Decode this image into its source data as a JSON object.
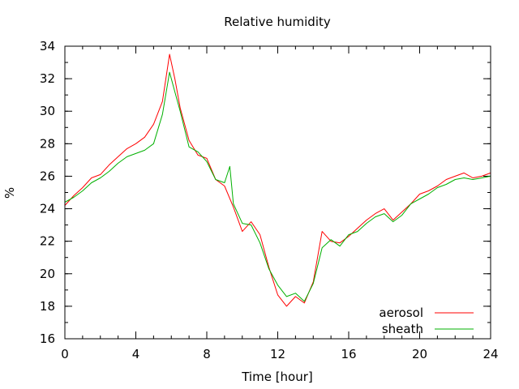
{
  "chart_data": {
    "type": "line",
    "title": "Relative humidity",
    "xlabel": "Time [hour]",
    "ylabel": "%",
    "xlim": [
      0,
      24
    ],
    "ylim": [
      16,
      34
    ],
    "xticks": [
      "0",
      "4",
      "8",
      "12",
      "16",
      "20",
      "24"
    ],
    "yticks": [
      "16",
      "18",
      "20",
      "22",
      "24",
      "26",
      "28",
      "30",
      "32",
      "34"
    ],
    "grid": false,
    "legend_position": "bottom-right",
    "series": [
      {
        "name": "aerosol",
        "color": "#ff0000",
        "x": [
          0,
          0.5,
          1,
          1.5,
          2,
          2.5,
          3,
          3.5,
          4,
          4.5,
          5,
          5.5,
          5.9,
          6.2,
          6.5,
          7,
          7.5,
          8,
          8.5,
          9,
          9.5,
          10,
          10.5,
          11,
          11.5,
          12,
          12.5,
          13,
          13.5,
          14,
          14.5,
          15,
          15.5,
          16,
          16.5,
          17,
          17.5,
          18,
          18.5,
          19,
          19.5,
          20,
          20.5,
          21,
          21.5,
          22,
          22.5,
          23,
          23.5,
          24
        ],
        "y": [
          24.2,
          24.8,
          25.3,
          25.9,
          26.1,
          26.7,
          27.2,
          27.7,
          28.0,
          28.4,
          29.2,
          30.6,
          33.5,
          32.0,
          30.2,
          28.2,
          27.3,
          27.1,
          25.8,
          25.4,
          24.1,
          22.6,
          23.2,
          22.4,
          20.4,
          18.7,
          18.0,
          18.6,
          18.2,
          19.5,
          22.6,
          22.0,
          21.9,
          22.3,
          22.8,
          23.3,
          23.7,
          24.0,
          23.3,
          23.8,
          24.3,
          24.9,
          25.1,
          25.4,
          25.8,
          26.0,
          26.2,
          25.9,
          26.0,
          26.2
        ]
      },
      {
        "name": "sheath",
        "color": "#00b000",
        "x": [
          0,
          0.5,
          1,
          1.5,
          2,
          2.5,
          3,
          3.5,
          4,
          4.5,
          5,
          5.5,
          5.9,
          6.2,
          6.5,
          7,
          7.5,
          8,
          8.5,
          9,
          9.3,
          9.5,
          10,
          10.5,
          11,
          11.5,
          12,
          12.5,
          13,
          13.5,
          14,
          14.5,
          15,
          15.5,
          16,
          16.5,
          17,
          17.5,
          18,
          18.5,
          19,
          19.5,
          20,
          20.5,
          21,
          21.5,
          22,
          22.5,
          23,
          23.5,
          24
        ],
        "y": [
          24.4,
          24.7,
          25.1,
          25.6,
          25.9,
          26.3,
          26.8,
          27.2,
          27.4,
          27.6,
          28.0,
          29.8,
          32.4,
          31.2,
          30.0,
          27.8,
          27.5,
          26.9,
          25.8,
          25.6,
          26.6,
          24.3,
          23.1,
          23.0,
          21.9,
          20.3,
          19.3,
          18.6,
          18.8,
          18.3,
          19.4,
          21.6,
          22.1,
          21.7,
          22.4,
          22.6,
          23.1,
          23.5,
          23.7,
          23.2,
          23.6,
          24.3,
          24.6,
          24.9,
          25.3,
          25.5,
          25.8,
          25.9,
          25.8,
          25.9,
          26.0
        ]
      }
    ]
  }
}
